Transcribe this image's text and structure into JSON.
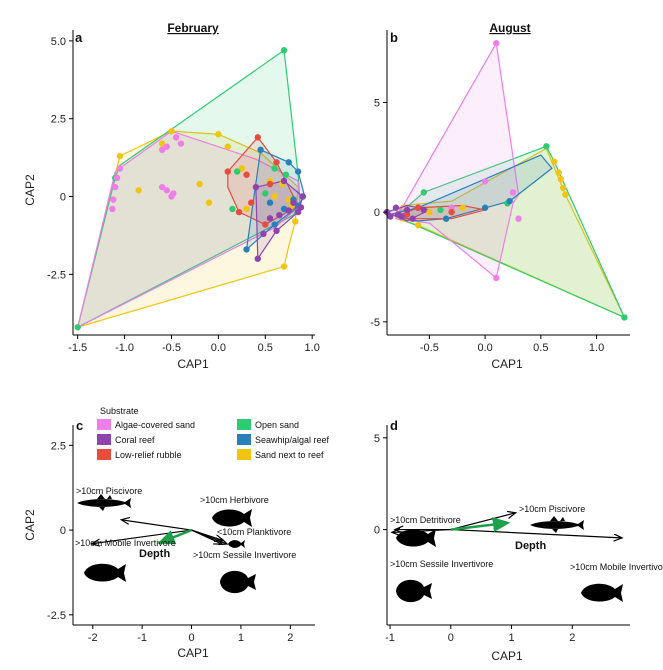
{
  "chart_data": [
    {
      "panel": "a",
      "type": "scatter",
      "title": "February",
      "xlabel": "CAP1",
      "ylabel": "CAP2",
      "xlim": [
        -1.55,
        1.03
      ],
      "ylim": [
        -4.45,
        5.35
      ],
      "xticks": [
        "-1.5",
        "-1.0",
        "-0.5",
        "0.0",
        "0.5",
        "1.0"
      ],
      "xtick_values": [
        -1.5,
        -1.0,
        -0.5,
        0.0,
        0.5,
        1.0
      ],
      "yticks": [
        "-2.5",
        "0",
        "2.5",
        "5.0"
      ],
      "ytick_values": [
        -2.5,
        0,
        2.5,
        5.0
      ],
      "hulls": [
        {
          "group": "sand_reef",
          "points": [
            [
              -1.5,
              -4.2
            ],
            [
              -1.05,
              1.3
            ],
            [
              -0.5,
              2.1
            ],
            [
              0.0,
              2.0
            ],
            [
              0.45,
              1.4
            ],
            [
              0.85,
              0.3
            ],
            [
              0.82,
              -0.8
            ],
            [
              0.75,
              -1.6
            ],
            [
              0.7,
              -2.25
            ]
          ]
        },
        {
          "group": "open_sand",
          "points": [
            [
              -1.5,
              -4.2
            ],
            [
              -1.1,
              0.6
            ],
            [
              -1.05,
              1.0
            ],
            [
              0.7,
              4.7
            ],
            [
              0.85,
              0.7
            ],
            [
              0.87,
              -0.2
            ],
            [
              0.8,
              -0.6
            ]
          ]
        },
        {
          "group": "algae_sand",
          "points": [
            [
              -1.5,
              -4.2
            ],
            [
              -1.1,
              0.8
            ],
            [
              -0.5,
              2.1
            ],
            [
              0.4,
              1.2
            ],
            [
              0.85,
              0.5
            ],
            [
              0.87,
              -0.3
            ],
            [
              0.6,
              -1.0
            ]
          ]
        },
        {
          "group": "rubble",
          "points": [
            [
              0.1,
              0.8
            ],
            [
              0.42,
              1.9
            ],
            [
              0.62,
              1.1
            ],
            [
              0.85,
              -0.3
            ],
            [
              0.5,
              -0.9
            ],
            [
              0.22,
              -0.5
            ],
            [
              0.1,
              0.3
            ]
          ]
        },
        {
          "group": "seawhip",
          "points": [
            [
              0.3,
              -1.7
            ],
            [
              0.45,
              1.5
            ],
            [
              0.75,
              1.1
            ],
            [
              0.85,
              0.8
            ],
            [
              0.92,
              0.0
            ],
            [
              0.82,
              -0.4
            ],
            [
              0.6,
              -0.9
            ]
          ]
        },
        {
          "group": "coral",
          "points": [
            [
              0.42,
              -2.0
            ],
            [
              0.4,
              0.3
            ],
            [
              0.7,
              0.5
            ],
            [
              0.9,
              0.0
            ],
            [
              0.85,
              -0.5
            ],
            [
              0.62,
              -1.1
            ]
          ]
        }
      ],
      "points": [
        {
          "group": "sand_reef",
          "xy": [
            [
              -1.05,
              1.3
            ],
            [
              -0.5,
              2.1
            ],
            [
              0.0,
              2.0
            ],
            [
              0.7,
              -2.25
            ],
            [
              -0.6,
              1.7
            ],
            [
              -0.2,
              0.4
            ],
            [
              -0.1,
              -0.2
            ],
            [
              0.1,
              1.6
            ],
            [
              0.25,
              0.9
            ],
            [
              0.55,
              0.5
            ],
            [
              0.6,
              0.0
            ],
            [
              0.78,
              -0.3
            ],
            [
              0.82,
              -0.8
            ],
            [
              -0.85,
              0.2
            ],
            [
              0.3,
              -0.4
            ],
            [
              0.68,
              0.4
            ],
            [
              0.75,
              -0.1
            ]
          ]
        },
        {
          "group": "open_sand",
          "points_note": "",
          "xy": [
            [
              0.7,
              4.7
            ],
            [
              -1.5,
              -4.2
            ],
            [
              -1.1,
              0.6
            ],
            [
              0.2,
              0.8
            ],
            [
              0.6,
              0.9
            ],
            [
              0.15,
              -0.4
            ],
            [
              0.5,
              0.1
            ],
            [
              0.72,
              0.7
            ]
          ]
        },
        {
          "group": "algae_sand",
          "xy": [
            [
              -1.05,
              0.9
            ],
            [
              -1.08,
              0.6
            ],
            [
              -1.1,
              0.3
            ],
            [
              -1.12,
              -0.1
            ],
            [
              -1.13,
              -0.4
            ],
            [
              -0.4,
              1.7
            ],
            [
              -0.55,
              1.6
            ],
            [
              -0.6,
              1.5
            ],
            [
              -0.45,
              1.9
            ],
            [
              -0.55,
              0.2
            ],
            [
              -0.5,
              0.0
            ],
            [
              -0.48,
              0.1
            ],
            [
              -0.6,
              0.3
            ]
          ]
        },
        {
          "group": "rubble",
          "xy": [
            [
              0.42,
              1.9
            ],
            [
              0.1,
              0.8
            ],
            [
              0.22,
              -0.5
            ],
            [
              0.5,
              -0.9
            ],
            [
              0.62,
              1.1
            ],
            [
              0.3,
              0.7
            ],
            [
              0.55,
              0.4
            ],
            [
              0.35,
              -0.2
            ]
          ]
        },
        {
          "group": "seawhip",
          "xy": [
            [
              0.3,
              -1.7
            ],
            [
              0.45,
              1.5
            ],
            [
              0.75,
              1.1
            ],
            [
              0.85,
              0.8
            ],
            [
              0.6,
              -0.9
            ],
            [
              0.9,
              0.0
            ],
            [
              0.8,
              -0.1
            ],
            [
              0.85,
              -0.3
            ],
            [
              0.7,
              -0.4
            ],
            [
              0.55,
              -0.2
            ]
          ]
        },
        {
          "group": "coral",
          "xy": [
            [
              0.42,
              -2.0
            ],
            [
              0.4,
              0.3
            ],
            [
              0.7,
              0.5
            ],
            [
              0.9,
              0.0
            ],
            [
              0.85,
              -0.5
            ],
            [
              0.62,
              -1.1
            ],
            [
              0.8,
              -0.2
            ],
            [
              0.75,
              -0.45
            ],
            [
              0.88,
              -0.35
            ],
            [
              0.65,
              -0.6
            ],
            [
              0.55,
              -0.7
            ],
            [
              0.48,
              -1.2
            ]
          ]
        }
      ]
    },
    {
      "panel": "b",
      "type": "scatter",
      "title": "August",
      "xlabel": "CAP1",
      "ylabel": "",
      "xlim": [
        -0.88,
        1.3
      ],
      "ylim": [
        -5.6,
        8.3
      ],
      "xticks": [
        "-0.5",
        "0.0",
        "0.5",
        "1.0"
      ],
      "xtick_values": [
        -0.5,
        0.0,
        0.5,
        1.0
      ],
      "yticks": [
        "-5",
        "0",
        "5"
      ],
      "ytick_values": [
        -5,
        0,
        5
      ],
      "hulls": [
        {
          "group": "sand_reef",
          "points": [
            [
              -0.8,
              -0.3
            ],
            [
              -0.75,
              0.3
            ],
            [
              -0.3,
              0.5
            ],
            [
              0.55,
              2.9
            ],
            [
              0.72,
              0.8
            ],
            [
              1.25,
              -4.8
            ],
            [
              -0.6,
              -0.6
            ]
          ]
        },
        {
          "group": "open_sand",
          "points": [
            [
              -0.8,
              -0.2
            ],
            [
              -0.55,
              0.9
            ],
            [
              0.55,
              3.0
            ],
            [
              0.62,
              2.3
            ],
            [
              1.25,
              -4.8
            ]
          ]
        },
        {
          "group": "algae_sand",
          "points": [
            [
              -0.8,
              -0.3
            ],
            [
              0.1,
              7.7
            ],
            [
              0.3,
              0.8
            ],
            [
              0.25,
              0.4
            ],
            [
              0.1,
              -3.0
            ],
            [
              -0.5,
              -0.5
            ]
          ]
        },
        {
          "group": "seawhip",
          "points": [
            [
              -0.85,
              -0.1
            ],
            [
              -0.6,
              0.2
            ],
            [
              0.5,
              2.6
            ],
            [
              0.6,
              2.0
            ],
            [
              0.22,
              0.5
            ],
            [
              -0.35,
              -0.3
            ],
            [
              -0.6,
              -0.4
            ]
          ]
        },
        {
          "group": "rubble",
          "points": [
            [
              -0.8,
              -0.2
            ],
            [
              -0.6,
              0.2
            ],
            [
              -0.2,
              0.3
            ],
            [
              0.0,
              0.1
            ],
            [
              -0.3,
              -0.3
            ],
            [
              -0.7,
              -0.3
            ]
          ]
        },
        {
          "group": "coral",
          "points": [
            [
              -0.88,
              0.0
            ],
            [
              -0.7,
              0.3
            ],
            [
              -0.5,
              0.1
            ],
            [
              -0.7,
              -0.4
            ]
          ]
        }
      ],
      "points": [
        {
          "group": "algae_sand",
          "xy": [
            [
              0.1,
              7.7
            ],
            [
              0.1,
              -3.0
            ],
            [
              0.0,
              1.4
            ],
            [
              0.25,
              0.9
            ],
            [
              0.3,
              -0.3
            ],
            [
              -0.3,
              0.2
            ]
          ]
        },
        {
          "group": "open_sand",
          "xy": [
            [
              0.55,
              3.0
            ],
            [
              -0.55,
              0.9
            ],
            [
              1.25,
              -4.8
            ],
            [
              -0.4,
              0.1
            ],
            [
              0.2,
              0.4
            ]
          ]
        },
        {
          "group": "sand_reef",
          "xy": [
            [
              0.62,
              2.3
            ],
            [
              0.66,
              1.8
            ],
            [
              0.68,
              1.5
            ],
            [
              0.7,
              1.1
            ],
            [
              0.72,
              0.8
            ],
            [
              -0.6,
              -0.6
            ],
            [
              -0.7,
              0.1
            ],
            [
              -0.5,
              0.0
            ],
            [
              -0.2,
              0.2
            ]
          ]
        },
        {
          "group": "seawhip",
          "xy": [
            [
              0.22,
              0.5
            ],
            [
              -0.35,
              -0.3
            ],
            [
              0.0,
              0.2
            ],
            [
              -0.6,
              0.2
            ]
          ]
        },
        {
          "group": "rubble",
          "xy": [
            [
              -0.6,
              0.2
            ],
            [
              -0.3,
              0.0
            ],
            [
              -0.7,
              -0.1
            ]
          ]
        },
        {
          "group": "coral",
          "xy": [
            [
              -0.88,
              0.0
            ],
            [
              -0.8,
              0.2
            ],
            [
              -0.75,
              -0.2
            ],
            [
              -0.7,
              0.1
            ],
            [
              -0.65,
              -0.3
            ],
            [
              -0.85,
              -0.2
            ],
            [
              -0.55,
              0.1
            ],
            [
              -0.78,
              -0.1
            ]
          ]
        }
      ]
    },
    {
      "panel": "c",
      "type": "biplot",
      "title": "",
      "xlabel": "CAP1",
      "ylabel": "CAP2",
      "xlim": [
        -2.4,
        2.5
      ],
      "ylim": [
        -2.8,
        3.1
      ],
      "xticks": [
        "-2",
        "-1",
        "0",
        "1",
        "2"
      ],
      "xtick_values": [
        -2,
        -1,
        0,
        1,
        2
      ],
      "yticks": [
        "-2.5",
        "0",
        "2.5"
      ],
      "ytick_values": [
        -2.5,
        0,
        2.5
      ],
      "vectors": [
        {
          "label": ">10cm Piscivore",
          "to": [
            -1.4,
            0.3
          ],
          "color": "#000000"
        },
        {
          "label": ">10cm Herbivore",
          "to": [
            0.62,
            -0.3
          ],
          "color": "#000000"
        },
        {
          "label": "<10cm Planktivore",
          "to": [
            0.7,
            -0.4
          ],
          "color": "#000000"
        },
        {
          "label": ">10cm Mobile Invertivore",
          "to": [
            -2.0,
            -0.4
          ],
          "color": "#000000"
        },
        {
          "label": ">10cm Sessile Invertivore",
          "to": [
            0.6,
            -0.4
          ],
          "color": "#000000"
        },
        {
          "label": "Depth",
          "to": [
            -0.6,
            -0.35
          ],
          "color": "#1aa14a"
        }
      ],
      "legend": {
        "title": "Substrate",
        "position": "top",
        "items": [
          {
            "label": "Algae-covered sand",
            "color": "#f07ee8"
          },
          {
            "label": "Coral reef",
            "color": "#8e44ad"
          },
          {
            "label": "Low-relief rubble",
            "color": "#e74c3c"
          },
          {
            "label": "Open sand",
            "color": "#2ecc71"
          },
          {
            "label": "Seawhip/algal reef",
            "color": "#2980b9"
          },
          {
            "label": "Sand next to reef",
            "color": "#f1c40f"
          }
        ]
      }
    },
    {
      "panel": "d",
      "type": "biplot",
      "title": "",
      "xlabel": "CAP1",
      "ylabel": "",
      "xlim": [
        -1.05,
        2.95
      ],
      "ylim": [
        -5.2,
        5.7
      ],
      "xticks": [
        "-1",
        "0",
        "1",
        "2"
      ],
      "xtick_values": [
        -1,
        0,
        1,
        2
      ],
      "yticks": [
        "0",
        "5"
      ],
      "ytick_values": [
        0,
        5
      ],
      "vectors": [
        {
          "label": ">10cm Piscivore",
          "to": [
            1.05,
            0.9
          ],
          "color": "#000000"
        },
        {
          "label": ">10cm Detritivore",
          "to": [
            -0.9,
            0.0
          ],
          "color": "#000000"
        },
        {
          "label": ">10cm Sessile Invertivore",
          "to": [
            -0.95,
            -0.15
          ],
          "color": "#000000"
        },
        {
          "label": ">10cm Mobile Invertivore",
          "to": [
            2.8,
            -0.45
          ],
          "color": "#000000"
        },
        {
          "label": "Depth",
          "to": [
            0.9,
            0.35
          ],
          "color": "#1aa14a"
        }
      ]
    }
  ],
  "colors": {
    "algae_sand": "#f07ee8",
    "coral": "#8e44ad",
    "rubble": "#e74c3c",
    "open_sand": "#2ecc71",
    "seawhip": "#2980b9",
    "sand_reef": "#f1c40f",
    "depth": "#1aa14a"
  },
  "icons": [
    "barracuda-icon",
    "parrotfish-icon",
    "small-fish-icon",
    "grunt-icon",
    "angelfish-icon"
  ]
}
